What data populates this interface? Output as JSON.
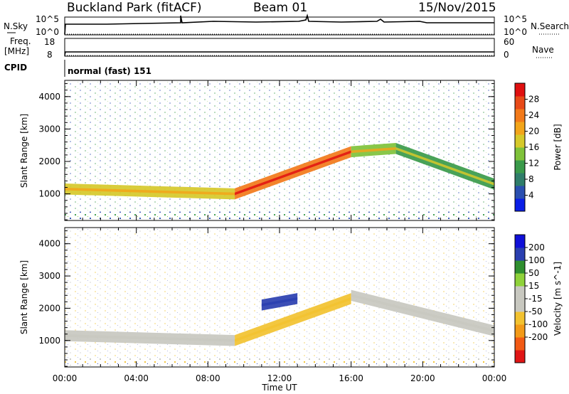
{
  "header": {
    "station": "Buckland Park (fitACF)",
    "beam": "Beam 01",
    "date": "15/Nov/2015"
  },
  "top_panels": {
    "nsky_label": "N.Sky",
    "nsky_ticks": [
      "10^5",
      "10^0"
    ],
    "nsearch_label": "N.Search",
    "nsearch_ticks": [
      "10^5",
      "10^0"
    ],
    "freq_label": "Freq.",
    "freq_unit": "[MHz]",
    "freq_ticks": [
      "18",
      "8"
    ],
    "nave_label": "Nave",
    "nave_ticks": [
      "60",
      "0"
    ],
    "cpid_label": "CPID",
    "cpid_text": "normal (fast) 151"
  },
  "colors": {
    "power_scale": [
      "#0a1ee6",
      "#2a4fb0",
      "#2f7d6a",
      "#3a9a4a",
      "#7fc23a",
      "#d6c92a",
      "#f2a51a",
      "#f27a1a",
      "#e84a18",
      "#e01010"
    ],
    "velocity_scale": [
      "#e01515",
      "#f25a14",
      "#f29a18",
      "#f2c230",
      "#c8c8c0",
      "#c8c8c0",
      "#8fd23a",
      "#2f8f2f",
      "#2a3fb0",
      "#1010d8"
    ]
  },
  "chart_data": [
    {
      "type": "heatmap",
      "title": "",
      "xlabel": "",
      "ylabel": "Slant Range [km]",
      "xlim": [
        "00:00",
        "24:00"
      ],
      "ylim": [
        180,
        4500
      ],
      "x_ticks": [
        "00:00",
        "04:00",
        "08:00",
        "12:00",
        "16:00",
        "20:00",
        "00:00"
      ],
      "y_ticks": [
        1000,
        2000,
        3000,
        4000
      ],
      "colorbar": {
        "label": "Power [dB]",
        "range": [
          0,
          32
        ],
        "ticks": [
          4,
          8,
          12,
          16,
          20,
          24,
          28
        ]
      },
      "echo_bands": [
        {
          "start_hour": 0,
          "end_hour": 9.5,
          "range_start_km": 1150,
          "range_end_km": 1000,
          "power_db": 16
        },
        {
          "start_hour": 9.5,
          "end_hour": 16,
          "range_start_km": 1000,
          "range_end_km": 2300,
          "power_db": 24
        },
        {
          "start_hour": 16,
          "end_hour": 18.5,
          "range_start_km": 2300,
          "range_end_km": 2400,
          "power_db": 14
        },
        {
          "start_hour": 18.5,
          "end_hour": 24,
          "range_start_km": 2400,
          "range_end_km": 1300,
          "power_db": 12
        }
      ]
    },
    {
      "type": "heatmap",
      "title": "",
      "xlabel": "Time UT",
      "ylabel": "Slant Range [km]",
      "xlim": [
        "00:00",
        "24:00"
      ],
      "ylim": [
        180,
        4500
      ],
      "x_ticks": [
        "00:00",
        "04:00",
        "08:00",
        "12:00",
        "16:00",
        "20:00",
        "00:00"
      ],
      "y_ticks": [
        1000,
        2000,
        3000,
        4000
      ],
      "colorbar": {
        "label": "Velocity [m s^-1]",
        "range": [
          -250,
          250
        ],
        "ticks": [
          200,
          100,
          50,
          15,
          -15,
          -50,
          -100,
          -200
        ]
      },
      "echo_bands": [
        {
          "start_hour": 0,
          "end_hour": 9.5,
          "range_start_km": 1150,
          "range_end_km": 1000,
          "velocity_ms": 0
        },
        {
          "start_hour": 9.5,
          "end_hour": 16,
          "range_start_km": 1000,
          "range_end_km": 2300,
          "velocity_ms": -60
        },
        {
          "start_hour": 11,
          "end_hour": 13,
          "range_start_km": 2100,
          "range_end_km": 2300,
          "velocity_ms": 180
        },
        {
          "start_hour": 16,
          "end_hour": 24,
          "range_start_km": 2400,
          "range_end_km": 1300,
          "velocity_ms": 0
        }
      ]
    }
  ]
}
